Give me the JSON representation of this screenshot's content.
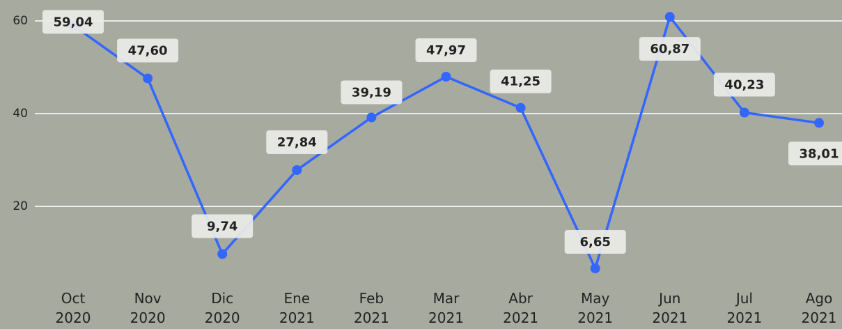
{
  "chart_data": {
    "type": "line",
    "categories": [
      "Oct 2020",
      "Nov 2020",
      "Dic 2020",
      "Ene 2021",
      "Feb 2021",
      "Mar 2021",
      "Abr 2021",
      "May 2021",
      "Jun 2021",
      "Jul 2021",
      "Ago 2021"
    ],
    "series": [
      {
        "color": "#3366ff",
        "values": [
          59.04,
          47.6,
          9.74,
          27.84,
          39.19,
          47.97,
          41.25,
          6.65,
          60.87,
          40.23,
          38.01
        ],
        "value_labels": [
          "59,04",
          "47,60",
          "9,74",
          "27,84",
          "39,19",
          "47,97",
          "41,25",
          "6,65",
          "60,87",
          "40,23",
          "38,01"
        ]
      }
    ],
    "ylim": [
      6.2,
      64.5
    ],
    "yticks": [
      20,
      40,
      60
    ],
    "grid": true
  }
}
